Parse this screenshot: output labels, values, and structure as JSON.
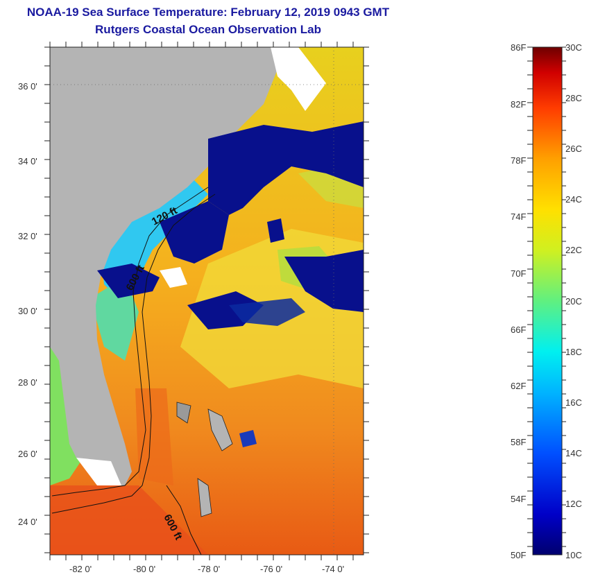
{
  "title": {
    "line1": "NOAA-19 Sea Surface Temperature:  February 12, 2019 0943 GMT",
    "line2": "Rutgers Coastal Ocean Observation Lab"
  },
  "axes": {
    "lat_labels": [
      "36 0'",
      "34 0'",
      "32 0'",
      "30 0'",
      "28 0'",
      "26 0'",
      "24 0'"
    ],
    "lon_labels": [
      "-82 0'",
      "-80 0'",
      "-78 0'",
      "-76 0'",
      "-74 0'"
    ]
  },
  "contours": {
    "label_120": "120 ft",
    "label_600_north": "600 ft",
    "label_600_south": "600 ft"
  },
  "colorbar": {
    "f_labels": [
      "86F",
      "82F",
      "78F",
      "74F",
      "70F",
      "66F",
      "62F",
      "58F",
      "54F",
      "50F"
    ],
    "c_labels": [
      "30C",
      "28C",
      "26C",
      "24C",
      "22C",
      "20C",
      "18C",
      "16C",
      "14C",
      "12C",
      "10C"
    ]
  },
  "colors": {
    "land": "#b4b4b4",
    "cloud_blue": "#08108c",
    "warm_orange": "#f08a1e",
    "warm_yellow": "#f5c81e",
    "title_blue": "#1a1aa0"
  }
}
